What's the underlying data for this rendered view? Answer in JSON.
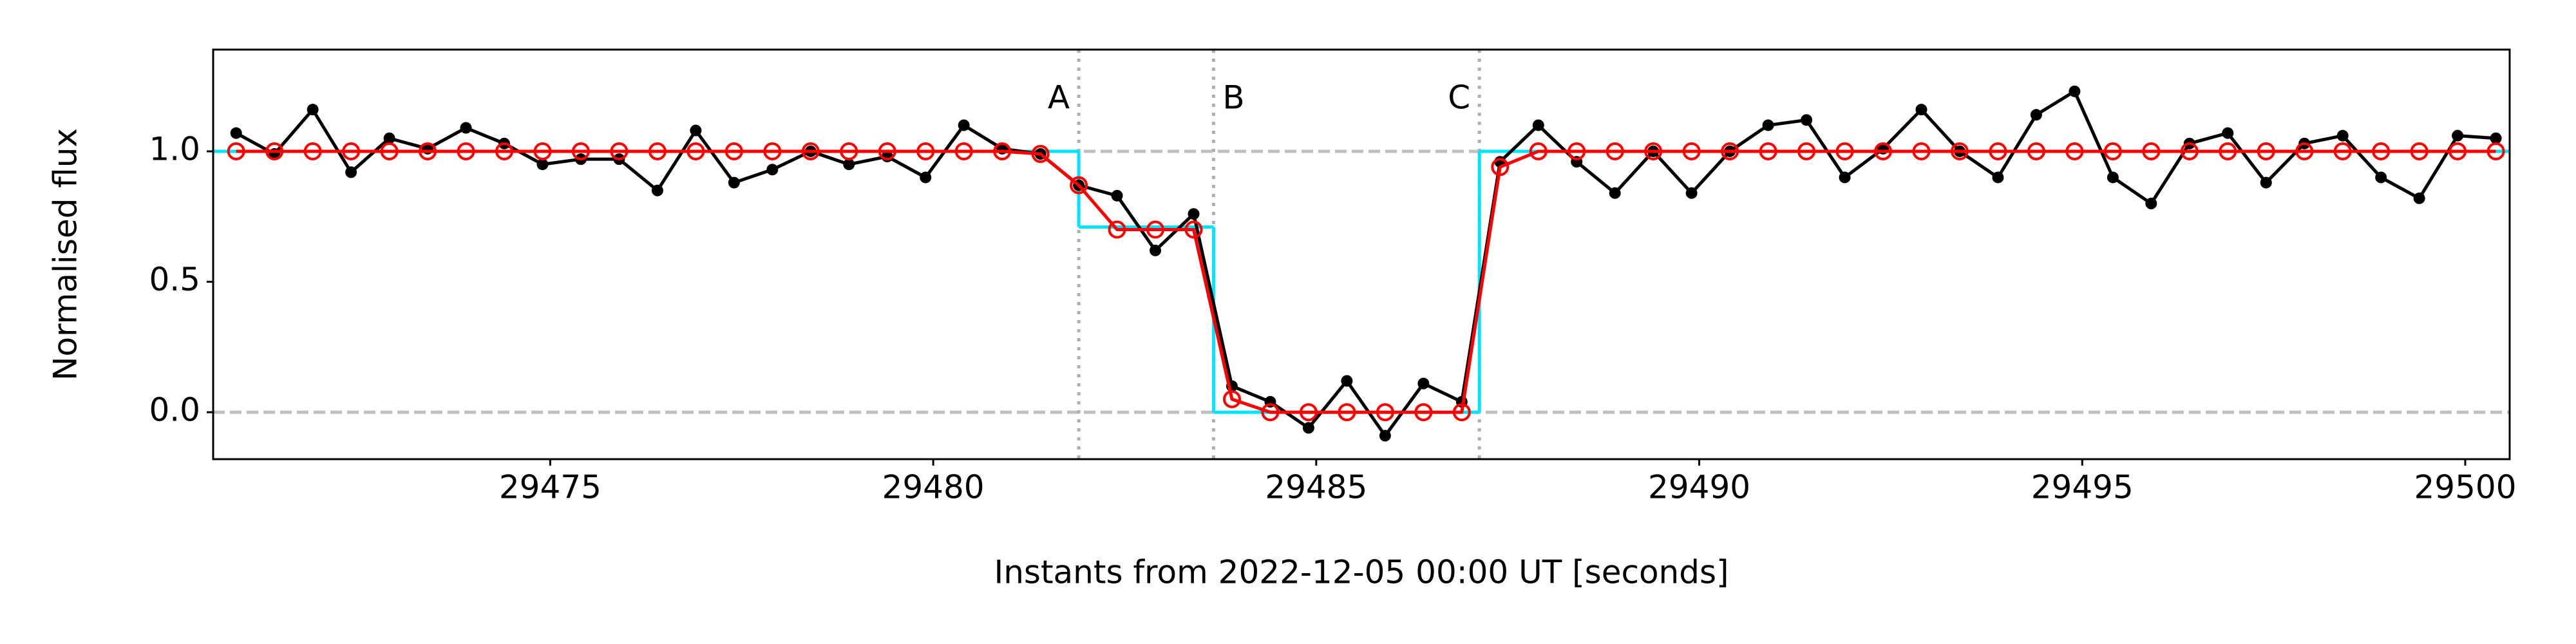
{
  "chart_data": {
    "type": "line",
    "xlabel": "Instants from 2022-12-05 00:00 UT [seconds]",
    "ylabel": "Normalised flux",
    "xlim": [
      29470.6,
      29500.58
    ],
    "ylim": [
      -0.18,
      1.39
    ],
    "xticks": [
      29475,
      29480,
      29485,
      29490,
      29495,
      29500
    ],
    "yticks": [
      {
        "value": 0,
        "label": "0.0"
      },
      {
        "value": 0.5,
        "label": "0.5"
      },
      {
        "value": 1,
        "label": "1.0"
      }
    ],
    "hlines": [
      0,
      1
    ],
    "vlines": [
      {
        "x": 29481.9,
        "label": "A"
      },
      {
        "x": 29483.66,
        "label": "B"
      },
      {
        "x": 29487.13,
        "label": "C"
      }
    ],
    "x": [
      29470.9,
      29471.4,
      29471.9,
      29472.4,
      29472.9,
      29473.4,
      29473.9,
      29474.4,
      29474.9,
      29475.4,
      29475.9,
      29476.4,
      29476.9,
      29477.4,
      29477.9,
      29478.4,
      29478.9,
      29479.4,
      29479.9,
      29480.4,
      29480.9,
      29481.4,
      29481.9,
      29482.4,
      29482.9,
      29483.4,
      29483.9,
      29484.4,
      29484.9,
      29485.4,
      29485.9,
      29486.4,
      29486.9,
      29487.4,
      29487.9,
      29488.4,
      29488.9,
      29489.4,
      29489.9,
      29490.4,
      29490.9,
      29491.4,
      29491.9,
      29492.4,
      29492.9,
      29493.4,
      29493.9,
      29494.4,
      29494.9,
      29495.4,
      29495.9,
      29496.4,
      29496.9,
      29497.4,
      29497.9,
      29498.4,
      29498.9,
      29499.4,
      29499.9,
      29500.4
    ],
    "step": {
      "color": "#00e5ff",
      "x": [
        29470.6,
        29481.9,
        29483.66,
        29487.13
      ],
      "values": [
        1,
        0.71,
        0,
        1
      ]
    },
    "series": [
      {
        "color": "#000000",
        "marker": "dot",
        "values": [
          1.07,
          0.99,
          1.16,
          0.92,
          1.05,
          1.01,
          1.09,
          1.03,
          0.95,
          0.97,
          0.97,
          0.85,
          1.08,
          0.88,
          0.93,
          1.0,
          0.95,
          0.98,
          0.9,
          1.1,
          1.01,
          0.99,
          0.87,
          0.83,
          0.62,
          0.76,
          0.1,
          0.04,
          -0.06,
          0.12,
          -0.09,
          0.11,
          0.04,
          0.96,
          1.1,
          0.96,
          0.84,
          1.0,
          0.84,
          1.0,
          1.1,
          1.12,
          0.9,
          1.01,
          1.16,
          1.0,
          0.9,
          1.14,
          1.23,
          0.9,
          0.8,
          1.03,
          1.07,
          0.88,
          1.03,
          1.06,
          0.9,
          0.82,
          1.06,
          1.05
        ]
      },
      {
        "color": "#ff0000",
        "marker": "open-circle",
        "values": [
          1,
          1,
          1,
          1,
          1,
          1,
          1,
          1,
          1,
          1,
          1,
          1,
          1,
          1,
          1,
          1,
          1,
          1,
          1,
          1,
          1,
          0.99,
          0.87,
          0.7,
          0.7,
          0.7,
          0.05,
          0,
          0,
          0,
          0,
          0,
          0,
          0.94,
          1,
          1,
          1,
          1,
          1,
          1,
          1,
          1,
          1,
          1,
          1,
          1,
          1,
          1,
          1,
          1,
          1,
          1,
          1,
          1,
          1,
          1,
          1,
          1,
          1,
          1
        ]
      }
    ]
  }
}
